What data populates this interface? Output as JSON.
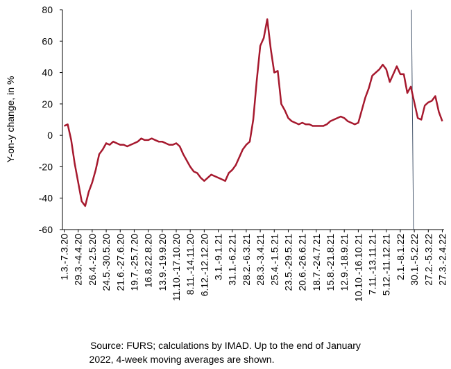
{
  "chart_data": {
    "type": "line",
    "y_label": "Y-on-y change, in %",
    "source": [
      "Source: FURS; calculations by IMAD. Up to the end of January",
      "2022, 4-week moving averages are shown."
    ],
    "categories": [
      "1.3.-7.3.20",
      null,
      null,
      null,
      "29.3.-4.4.20",
      null,
      null,
      null,
      "26.4.-2.5.20",
      null,
      null,
      null,
      "24.5.-30.5.20",
      null,
      null,
      null,
      "21.6.-27.6.20",
      null,
      null,
      null,
      "19.7.-25.7.20",
      null,
      null,
      null,
      "16.8.22.8.20",
      null,
      null,
      null,
      "13.9.-19.9.20",
      null,
      null,
      null,
      "11.10.-17.10.20",
      null,
      null,
      null,
      "8.11.-14.11.20",
      null,
      null,
      null,
      "6.12.-12.12.20",
      null,
      null,
      null,
      "3.1.-9.1.21",
      null,
      null,
      null,
      "31.1.-6.2.21",
      null,
      null,
      null,
      "28.2.-6.3.21",
      null,
      null,
      null,
      "28.3.-3.4.21",
      null,
      null,
      null,
      "25.4.-1.5.21",
      null,
      null,
      null,
      "23.5.-29.5.21",
      null,
      null,
      null,
      "20.6.-26.6.21",
      null,
      null,
      null,
      "18.7.-24.7.21",
      null,
      null,
      null,
      "15.8.-21.8.21",
      null,
      null,
      null,
      "12.9.-18.9.21",
      null,
      null,
      null,
      "10.10.-16.10.21",
      null,
      null,
      null,
      "7.11.-13.11.21",
      null,
      null,
      null,
      "5.12.-11.12.21",
      null,
      null,
      null,
      "2.1.-8.1.22",
      null,
      null,
      null,
      "30.1.-5.2.22",
      null,
      null,
      null,
      "27.2.-5.3.22",
      null,
      null,
      null,
      "27.3.-2.4.22"
    ],
    "series": [
      {
        "color": "#a6192e",
        "values": [
          6,
          7,
          -3,
          -18,
          -30,
          -42,
          -45,
          -36,
          -30,
          -22,
          -12,
          -9,
          -5,
          -6,
          -4,
          -5,
          -6,
          -6,
          -7,
          -6,
          -5,
          -4,
          -2,
          -3,
          -3,
          -2,
          -3,
          -4,
          -4,
          -5,
          -6,
          -6,
          -5,
          -7,
          -12,
          -16,
          -20,
          -23,
          -24,
          -27,
          -29,
          -27,
          -25,
          -26,
          -27,
          -28,
          -29,
          -24,
          -22,
          -19,
          -14,
          -9,
          -6,
          -4,
          10,
          35,
          57,
          62,
          74,
          55,
          40,
          41,
          20,
          16,
          11,
          9,
          8,
          7,
          8,
          7,
          7,
          6,
          6,
          6,
          6,
          7,
          9,
          10,
          11,
          12,
          11,
          9,
          8,
          7,
          8,
          16,
          24,
          30,
          38,
          40,
          42,
          45,
          42,
          34,
          39,
          44,
          39,
          39,
          27,
          31,
          21,
          11,
          10,
          19,
          21,
          22,
          25,
          15,
          9
        ]
      }
    ],
    "ylim": [
      -60,
      80
    ],
    "yticks": [
      -60,
      -40,
      -20,
      0,
      20,
      40,
      60,
      80
    ]
  }
}
